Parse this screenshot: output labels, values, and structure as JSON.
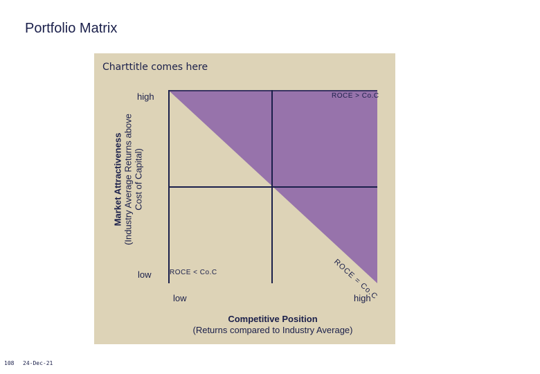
{
  "page_title": "Portfolio Matrix",
  "chart_title": "Charttitle comes here",
  "y_axis": {
    "title": "Market Attractiveness",
    "subtitle_line1": "(Industry Average Returns above",
    "subtitle_line2": "Cost of Capital)",
    "tick_high": "high",
    "tick_low": "low"
  },
  "x_axis": {
    "title": "Competitive Position",
    "subtitle": "(Returns compared to Industry Average)",
    "tick_low": "low",
    "tick_high": "high"
  },
  "regions": {
    "upper": "ROCE > Co.C",
    "lower": "ROCE < Co.C",
    "diagonal": "ROCE = Co.C"
  },
  "colors": {
    "panel": "#ddd3b7",
    "plot_background": "#ddd3b7",
    "value_creation_region": "#9773ab",
    "grid_lines": "#1a1f4a"
  },
  "footer": {
    "page_number": "108",
    "date": "24-Dec-21"
  }
}
